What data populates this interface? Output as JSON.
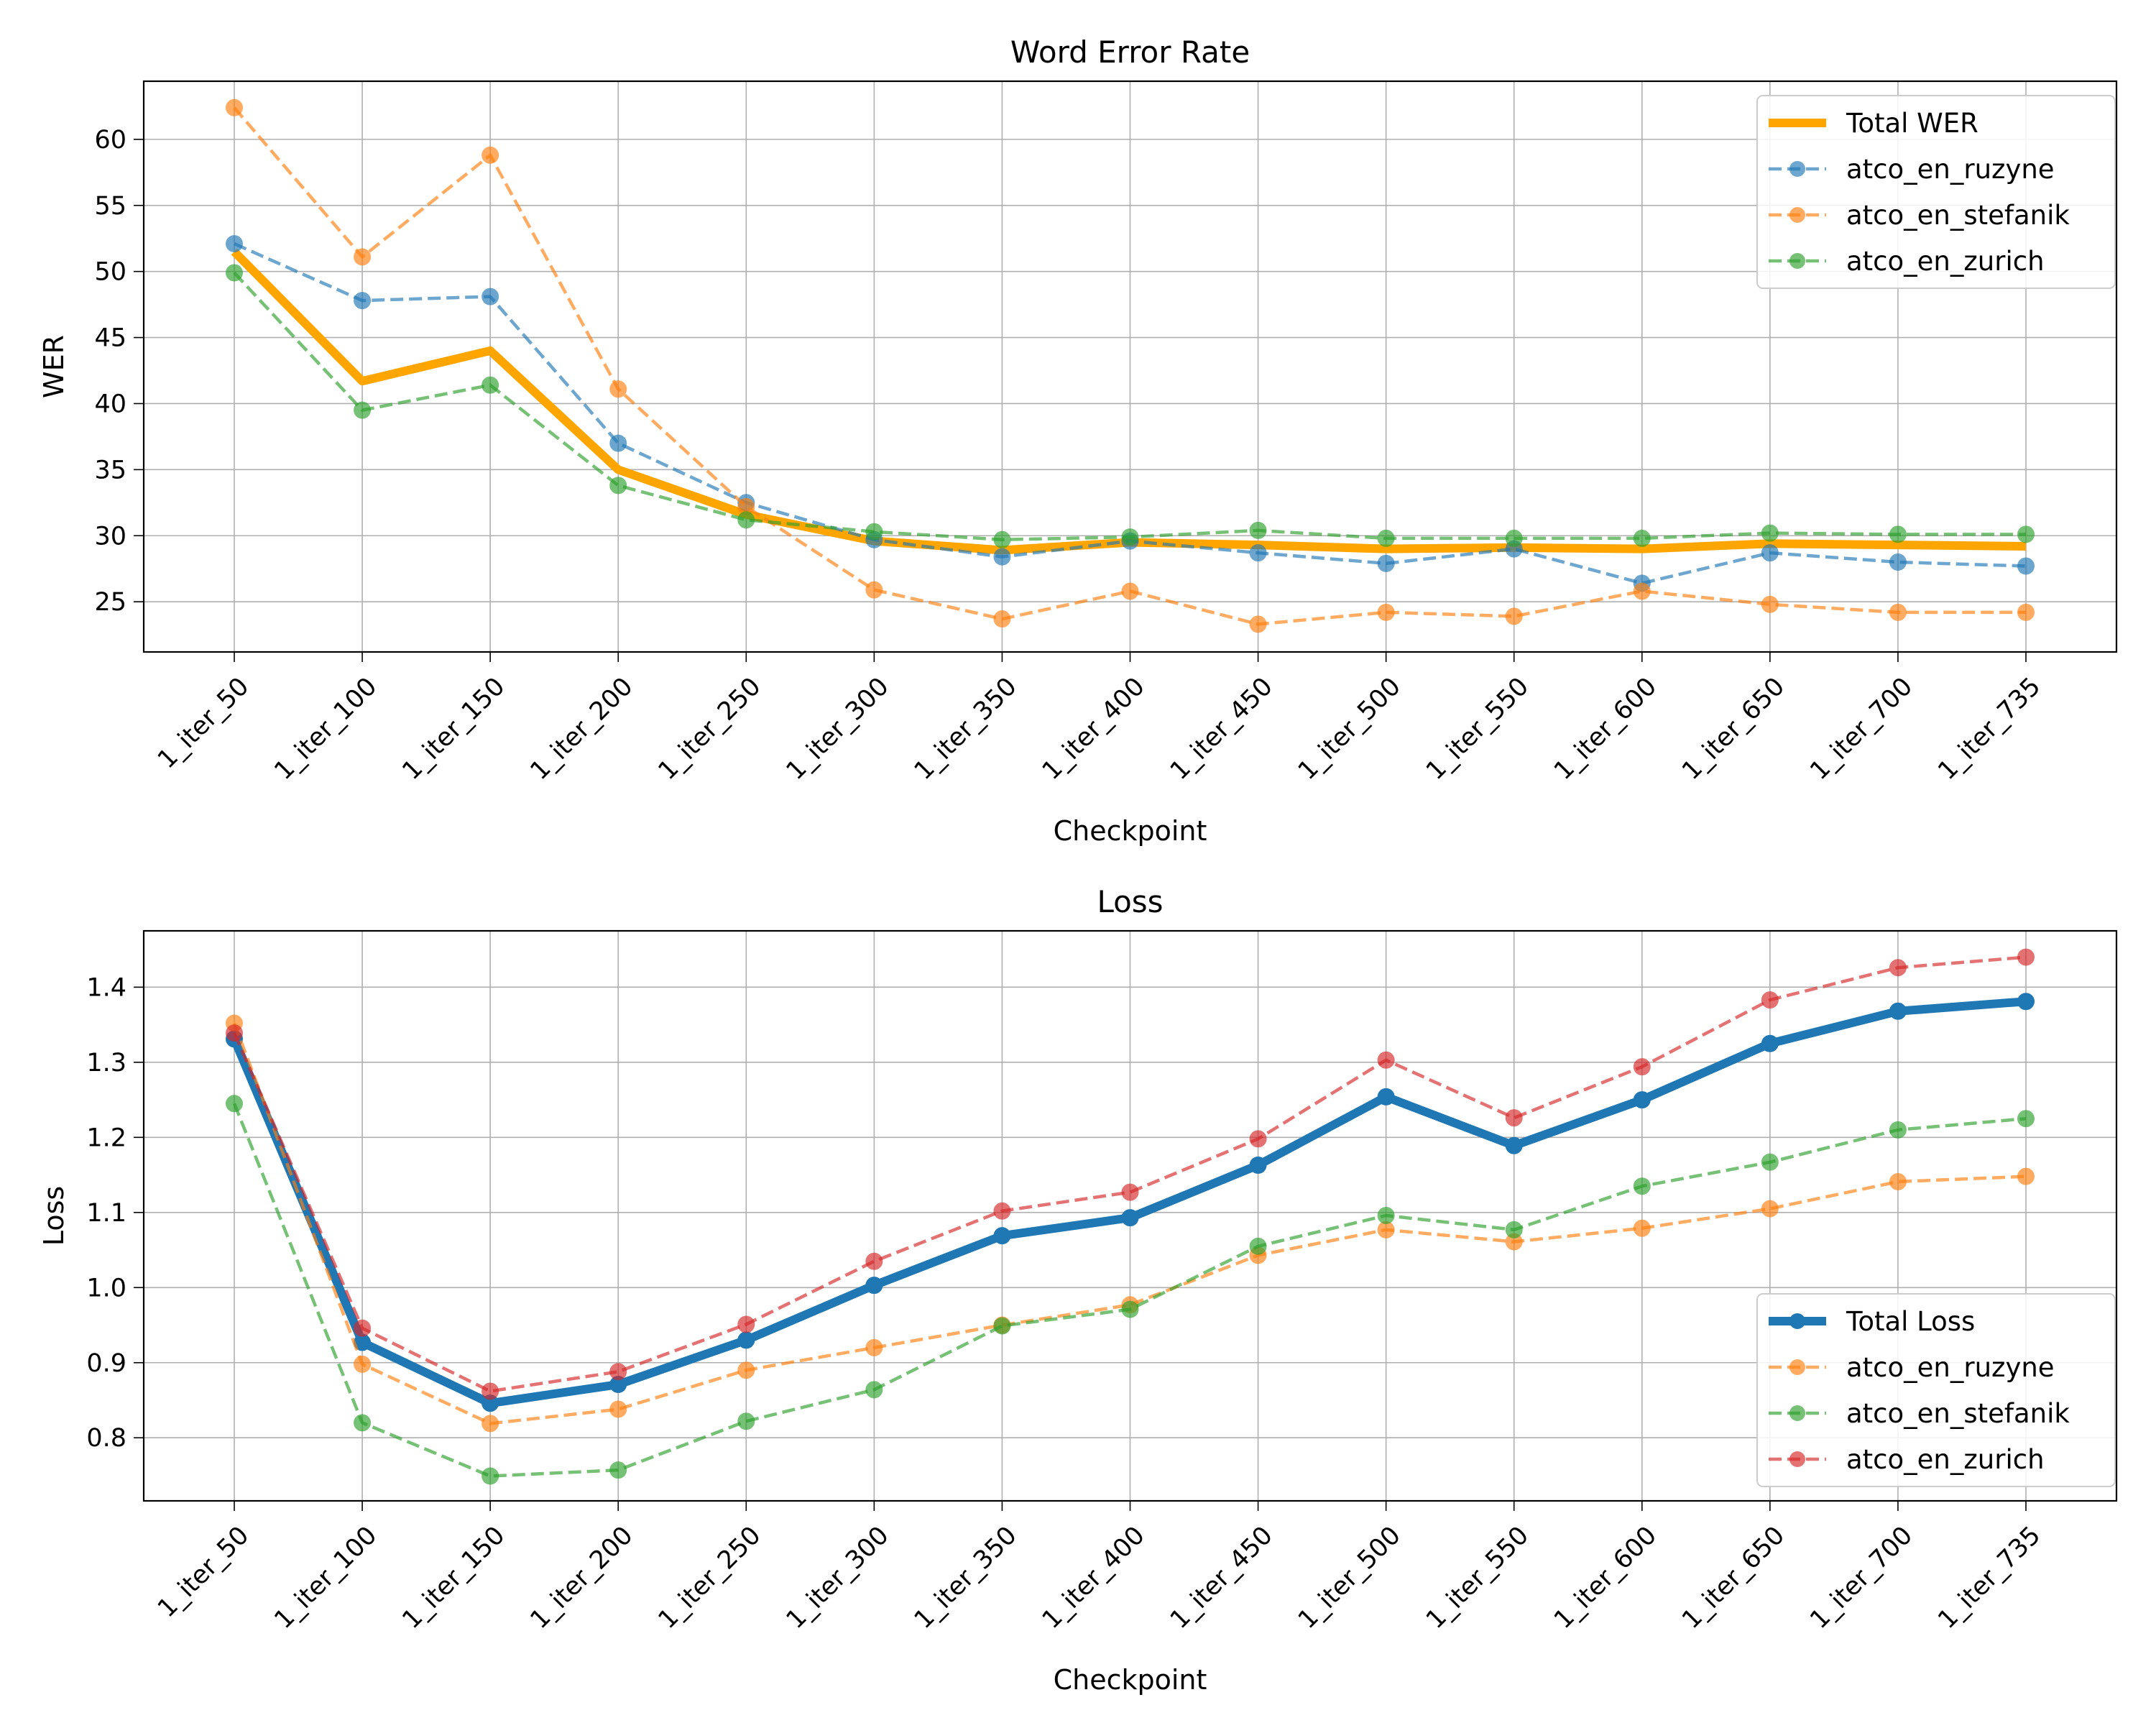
{
  "chart_data": [
    {
      "type": "line",
      "title": "Word Error Rate",
      "xlabel": "Checkpoint",
      "ylabel": "WER",
      "categories": [
        "1_iter_50",
        "1_iter_100",
        "1_iter_150",
        "1_iter_200",
        "1_iter_250",
        "1_iter_300",
        "1_iter_350",
        "1_iter_400",
        "1_iter_450",
        "1_iter_500",
        "1_iter_550",
        "1_iter_600",
        "1_iter_650",
        "1_iter_700",
        "1_iter_735"
      ],
      "yticks": [
        25,
        30,
        35,
        40,
        45,
        50,
        55,
        60
      ],
      "ylim": [
        21.2,
        64.4
      ],
      "grid": true,
      "legend_position": "upper right",
      "series": [
        {
          "name": "Total WER",
          "color": "#ffa500",
          "style": "solid-thick",
          "markers": false,
          "values": [
            51.5,
            41.7,
            44.0,
            35.0,
            31.6,
            29.6,
            28.9,
            29.5,
            29.3,
            29.0,
            29.1,
            29.0,
            29.4,
            29.3,
            29.2
          ]
        },
        {
          "name": "atco_en_ruzyne",
          "color": "#1f77b4",
          "style": "dashed",
          "markers": true,
          "values": [
            52.1,
            47.8,
            48.1,
            37.0,
            32.5,
            29.7,
            28.4,
            29.6,
            28.7,
            27.9,
            29.0,
            26.4,
            28.7,
            28.0,
            27.7
          ]
        },
        {
          "name": "atco_en_stefanik",
          "color": "#ff7f0e",
          "style": "dashed",
          "markers": true,
          "values": [
            62.4,
            51.1,
            58.8,
            41.1,
            32.2,
            25.9,
            23.7,
            25.8,
            23.3,
            24.2,
            23.9,
            25.8,
            24.8,
            24.2,
            24.2
          ]
        },
        {
          "name": "atco_en_zurich",
          "color": "#2ca02c",
          "style": "dashed",
          "markers": true,
          "values": [
            49.9,
            39.5,
            41.4,
            33.8,
            31.2,
            30.3,
            29.7,
            29.9,
            30.4,
            29.8,
            29.8,
            29.8,
            30.2,
            30.1,
            30.1
          ]
        }
      ]
    },
    {
      "type": "line",
      "title": "Loss",
      "xlabel": "Checkpoint",
      "ylabel": "Loss",
      "categories": [
        "1_iter_50",
        "1_iter_100",
        "1_iter_150",
        "1_iter_200",
        "1_iter_250",
        "1_iter_300",
        "1_iter_350",
        "1_iter_400",
        "1_iter_450",
        "1_iter_500",
        "1_iter_550",
        "1_iter_600",
        "1_iter_650",
        "1_iter_700",
        "1_iter_735"
      ],
      "yticks": [
        "0.8",
        "0.9",
        "1.0",
        "1.1",
        "1.2",
        "1.3",
        "1.4"
      ],
      "ylim": [
        0.716,
        1.475
      ],
      "grid": true,
      "legend_position": "lower right",
      "series": [
        {
          "name": "Total Loss",
          "color": "#1f77b4",
          "style": "solid-thick",
          "markers": true,
          "values": [
            1.331,
            0.927,
            0.846,
            0.871,
            0.93,
            1.003,
            1.069,
            1.093,
            1.163,
            1.254,
            1.189,
            1.25,
            1.325,
            1.368,
            1.381
          ]
        },
        {
          "name": "atco_en_ruzyne",
          "color": "#ff7f0e",
          "style": "dashed",
          "markers": true,
          "values": [
            1.352,
            0.898,
            0.819,
            0.838,
            0.89,
            0.92,
            0.95,
            0.977,
            1.043,
            1.077,
            1.061,
            1.079,
            1.105,
            1.141,
            1.148
          ]
        },
        {
          "name": "atco_en_stefanik",
          "color": "#2ca02c",
          "style": "dashed",
          "markers": true,
          "values": [
            1.245,
            0.82,
            0.749,
            0.757,
            0.822,
            0.864,
            0.949,
            0.971,
            1.055,
            1.096,
            1.077,
            1.135,
            1.167,
            1.21,
            1.225
          ]
        },
        {
          "name": "atco_en_zurich",
          "color": "#d62728",
          "style": "dashed",
          "markers": true,
          "values": [
            1.339,
            0.946,
            0.862,
            0.888,
            0.951,
            1.035,
            1.102,
            1.127,
            1.198,
            1.303,
            1.226,
            1.294,
            1.383,
            1.426,
            1.44
          ]
        }
      ]
    }
  ]
}
